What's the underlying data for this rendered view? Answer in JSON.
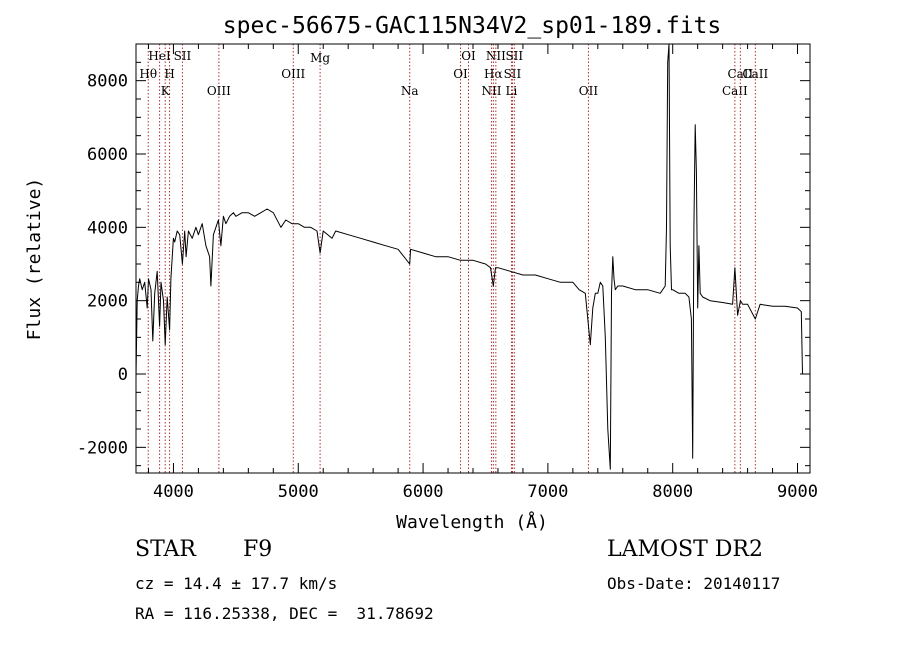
{
  "chart_data": {
    "type": "line",
    "title": "spec-56675-GAC115N34V2_sp01-189.fits",
    "xlabel": "Wavelength (Å)",
    "ylabel": "Flux (relative)",
    "xlim": [
      3700,
      9100
    ],
    "ylim": [
      -2700,
      9000
    ],
    "x_ticks": [
      4000,
      5000,
      6000,
      7000,
      8000,
      9000
    ],
    "y_ticks": [
      -2000,
      0,
      2000,
      4000,
      6000,
      8000
    ],
    "grid": false,
    "spectral_lines": [
      {
        "name": "Hθ",
        "wavelength": 3798,
        "row": 2
      },
      {
        "name": "HeI",
        "wavelength": 3889,
        "row": 0
      },
      {
        "name": "K",
        "wavelength": 3934,
        "row": 3
      },
      {
        "name": "H",
        "wavelength": 3969,
        "row": 2
      },
      {
        "name": "SII",
        "wavelength": 4072,
        "row": 0
      },
      {
        "name": "OIII",
        "wavelength": 4364,
        "row": 3
      },
      {
        "name": "OIII",
        "wavelength": 4960,
        "row": 2
      },
      {
        "name": "Mg",
        "wavelength": 5175,
        "row": 1
      },
      {
        "name": "Na",
        "wavelength": 5893,
        "row": 3
      },
      {
        "name": "OI",
        "wavelength": 6300,
        "row": 2
      },
      {
        "name": "OI",
        "wavelength": 6364,
        "row": 0
      },
      {
        "name": "NII",
        "wavelength": 6548,
        "row": 3
      },
      {
        "name": "Hα",
        "wavelength": 6563,
        "row": 2
      },
      {
        "name": "NII",
        "wavelength": 6583,
        "row": 0
      },
      {
        "name": "Li",
        "wavelength": 6708,
        "row": 3
      },
      {
        "name": "SII",
        "wavelength": 6716,
        "row": 2
      },
      {
        "name": "SII",
        "wavelength": 6731,
        "row": 0
      },
      {
        "name": "OII",
        "wavelength": 7325,
        "row": 3
      },
      {
        "name": "CaII",
        "wavelength": 8498,
        "row": 3
      },
      {
        "name": "CaII",
        "wavelength": 8542,
        "row": 2
      },
      {
        "name": "CaII",
        "wavelength": 8662,
        "row": 2
      }
    ],
    "series": [
      {
        "x": [
          3700,
          3710,
          3720,
          3730,
          3750,
          3770,
          3790,
          3800,
          3820,
          3835,
          3850,
          3870,
          3889,
          3900,
          3920,
          3934,
          3950,
          3969,
          3980,
          4000,
          4010,
          4030,
          4050,
          4072,
          4090,
          4101,
          4120,
          4150,
          4180,
          4200,
          4230,
          4260,
          4290,
          4300,
          4320,
          4340,
          4360,
          4380,
          4400,
          4420,
          4450,
          4480,
          4500,
          4550,
          4600,
          4650,
          4700,
          4750,
          4800,
          4861,
          4900,
          4950,
          5000,
          5050,
          5100,
          5150,
          5175,
          5200,
          5270,
          5300,
          5400,
          5500,
          5600,
          5700,
          5800,
          5893,
          5900,
          6000,
          6100,
          6200,
          6300,
          6400,
          6500,
          6540,
          6563,
          6580,
          6600,
          6700,
          6800,
          6900,
          7000,
          7100,
          7200,
          7250,
          7300,
          7320,
          7340,
          7360,
          7380,
          7400,
          7420,
          7440,
          7460,
          7480,
          7500,
          7510,
          7520,
          7530,
          7540,
          7560,
          7600,
          7700,
          7800,
          7900,
          7940,
          7950,
          7960,
          7970,
          7980,
          7990,
          8000,
          8050,
          8100,
          8130,
          8150,
          8160,
          8170,
          8180,
          8190,
          8200,
          8210,
          8220,
          8240,
          8300,
          8400,
          8480,
          8498,
          8520,
          8542,
          8560,
          8600,
          8662,
          8700,
          8800,
          8900,
          9000,
          9030,
          9040
        ],
        "y": [
          -100,
          2000,
          2400,
          2600,
          2300,
          2500,
          1800,
          2600,
          2300,
          900,
          2200,
          2800,
          1300,
          2500,
          2000,
          800,
          2100,
          1200,
          2600,
          3700,
          3600,
          3900,
          3800,
          3000,
          3900,
          3200,
          3900,
          3700,
          4000,
          3800,
          4100,
          3500,
          3200,
          2400,
          3800,
          4000,
          4200,
          3500,
          4300,
          4100,
          4300,
          4400,
          4300,
          4400,
          4400,
          4300,
          4400,
          4500,
          4400,
          4000,
          4200,
          4100,
          4100,
          4000,
          4000,
          3900,
          3300,
          3900,
          3700,
          3900,
          3800,
          3700,
          3600,
          3500,
          3400,
          3000,
          3400,
          3300,
          3200,
          3200,
          3100,
          3100,
          3000,
          2900,
          2400,
          2900,
          2900,
          2800,
          2700,
          2700,
          2600,
          2500,
          2500,
          2300,
          2200,
          1500,
          800,
          1800,
          2200,
          2200,
          2500,
          2400,
          1000,
          -1500,
          -2600,
          2200,
          3200,
          2600,
          2300,
          2400,
          2400,
          2300,
          2300,
          2200,
          2400,
          4000,
          8500,
          9200,
          3500,
          2300,
          2300,
          2200,
          2200,
          2100,
          1500,
          -2300,
          4000,
          6800,
          5500,
          1800,
          3500,
          2200,
          2100,
          2000,
          1950,
          1900,
          2900,
          1600,
          2000,
          1900,
          1900,
          1500,
          1900,
          1850,
          1850,
          1800,
          1700,
          0
        ]
      }
    ]
  },
  "info": {
    "object_class": "STAR",
    "subclass": "F9",
    "release": "LAMOST DR2",
    "cz": "cz = 14.4 ± 17.7 km/s",
    "obs_date": "Obs-Date: 20140117",
    "coords": "RA = 116.25338, DEC =  31.78692"
  }
}
